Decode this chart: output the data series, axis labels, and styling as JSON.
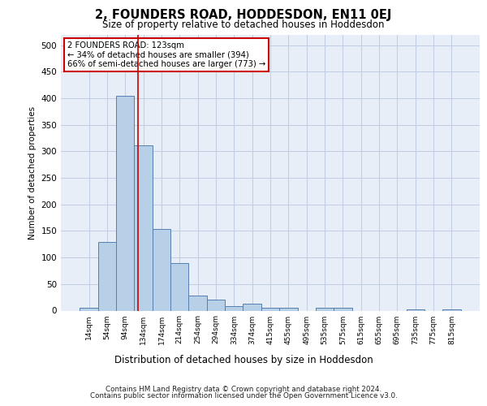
{
  "title": "2, FOUNDERS ROAD, HODDESDON, EN11 0EJ",
  "subtitle": "Size of property relative to detached houses in Hoddesdon",
  "xlabel": "Distribution of detached houses by size in Hoddesdon",
  "ylabel": "Number of detached properties",
  "bar_labels": [
    "14sqm",
    "54sqm",
    "94sqm",
    "134sqm",
    "174sqm",
    "214sqm",
    "254sqm",
    "294sqm",
    "334sqm",
    "374sqm",
    "415sqm",
    "455sqm",
    "495sqm",
    "535sqm",
    "575sqm",
    "615sqm",
    "655sqm",
    "695sqm",
    "735sqm",
    "775sqm",
    "815sqm"
  ],
  "bar_values": [
    5,
    130,
    405,
    312,
    153,
    90,
    29,
    20,
    9,
    13,
    5,
    5,
    0,
    5,
    6,
    0,
    0,
    0,
    2,
    0,
    2
  ],
  "bar_color": "#b8cfe8",
  "bar_edge_color": "#5580b0",
  "vline_color": "#cc0000",
  "annotation_text": "2 FOUNDERS ROAD: 123sqm\n← 34% of detached houses are smaller (394)\n66% of semi-detached houses are larger (773) →",
  "annotation_box_facecolor": "#ffffff",
  "annotation_box_edgecolor": "#cc0000",
  "ylim": [
    0,
    520
  ],
  "yticks": [
    0,
    50,
    100,
    150,
    200,
    250,
    300,
    350,
    400,
    450,
    500
  ],
  "background_color": "#e8eef8",
  "grid_color": "#c0cce0",
  "footer_line1": "Contains HM Land Registry data © Crown copyright and database right 2024.",
  "footer_line2": "Contains public sector information licensed under the Open Government Licence v3.0."
}
